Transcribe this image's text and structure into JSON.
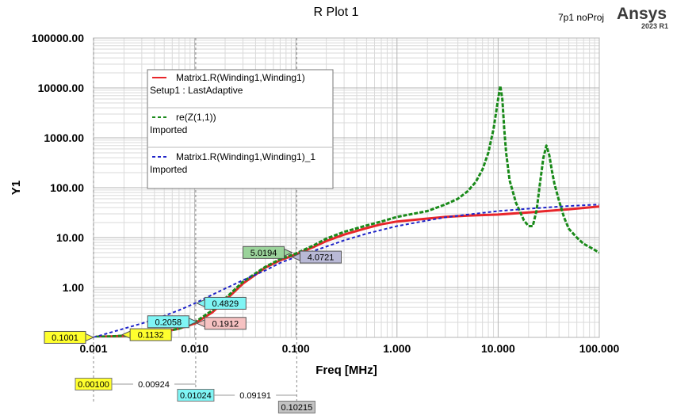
{
  "header": {
    "title": "R Plot 1",
    "project": "7p1 noProj",
    "brand": "Ansys",
    "release": "2023 R1"
  },
  "colors": {
    "series_red": "#e8262b",
    "series_green": "#1a8a1a",
    "series_blue": "#1f24c8",
    "marker_green_bg": "#9bd39b",
    "marker_cyan_bg": "#7ff5f5",
    "marker_pink_bg": "#f6c2c2",
    "marker_gray_bg": "#b9b9d6",
    "marker_yellow_bg": "#ffff2e",
    "marker_slate_bg": "#c2c2c2"
  },
  "chart_data": {
    "type": "line",
    "title": "R Plot 1",
    "xlabel": "Freq [MHz]",
    "ylabel": "Y1",
    "xscale": "log",
    "yscale": "log",
    "xlim": [
      0.001,
      100
    ],
    "ylim": [
      0.1,
      100000
    ],
    "grid": true,
    "x_ticks": [
      "0.001",
      "0.010",
      "0.100",
      "1.000",
      "10.000",
      "100.000"
    ],
    "y_ticks": [
      "100000.00",
      "10000.00",
      "1000.00",
      "100.00",
      "10.00",
      "1.00"
    ],
    "legend_position": "top-left",
    "series": [
      {
        "name": "Matrix1.R(Winding1,Winding1)",
        "source": "Setup1 : LastAdaptive",
        "color_key": "series_red",
        "style": "solid",
        "x": [
          0.00105,
          0.0015,
          0.002,
          0.003,
          0.005,
          0.007,
          0.01,
          0.015,
          0.02,
          0.03,
          0.05,
          0.07,
          0.1,
          0.15,
          0.2,
          0.3,
          0.5,
          0.7,
          1,
          2,
          3,
          5,
          10,
          20,
          50,
          100
        ],
        "y": [
          0.103,
          0.105,
          0.107,
          0.115,
          0.13,
          0.15,
          0.19,
          0.32,
          0.55,
          1.2,
          2.5,
          3.5,
          4.6,
          6.5,
          8.5,
          11.5,
          15.5,
          18.5,
          21,
          24,
          26,
          27.5,
          29,
          32,
          37,
          42
        ]
      },
      {
        "name": "re(Z(1,1))",
        "source": "Imported",
        "color_key": "series_green",
        "style": "dashed",
        "x": [
          0.00105,
          0.0015,
          0.002,
          0.003,
          0.005,
          0.007,
          0.01,
          0.015,
          0.02,
          0.03,
          0.05,
          0.07,
          0.1,
          0.15,
          0.2,
          0.3,
          0.5,
          0.7,
          1,
          2,
          3,
          4,
          5,
          6,
          7,
          8,
          9,
          10,
          10.5,
          11,
          11.5,
          12,
          13,
          15,
          18,
          20,
          22,
          24,
          26,
          28,
          30,
          32,
          34,
          36,
          40,
          45,
          50,
          60,
          70,
          80,
          100
        ],
        "y": [
          0.103,
          0.105,
          0.108,
          0.116,
          0.13,
          0.15,
          0.2,
          0.35,
          0.6,
          1.3,
          2.6,
          3.7,
          4.8,
          7,
          9.5,
          13,
          17.5,
          21,
          26,
          34,
          46,
          60,
          85,
          130,
          230,
          500,
          1500,
          6000,
          11000,
          6000,
          1500,
          500,
          140,
          50,
          22,
          17,
          17,
          35,
          130,
          400,
          700,
          450,
          220,
          120,
          55,
          25,
          15,
          10,
          7.5,
          6.5,
          5
        ]
      },
      {
        "name": "Matrix1.R(Winding1,Winding1)_1",
        "source": "Imported",
        "color_key": "series_blue",
        "style": "dashed",
        "x": [
          0.001,
          0.002,
          0.003,
          0.005,
          0.007,
          0.01,
          0.015,
          0.02,
          0.03,
          0.05,
          0.07,
          0.1,
          0.2,
          0.3,
          0.5,
          1,
          2,
          3,
          5,
          10,
          20,
          50,
          100
        ],
        "y": [
          0.1,
          0.15,
          0.19,
          0.27,
          0.35,
          0.48,
          0.72,
          0.95,
          1.4,
          2.2,
          3.1,
          4.1,
          6.6,
          8.8,
          12,
          17,
          22,
          25.5,
          29,
          34,
          38,
          43,
          46
        ]
      }
    ],
    "markers": [
      {
        "label": "0.1001",
        "bg_key": "marker_yellow_bg",
        "x": 0.001,
        "y": 0.1001,
        "side": "left"
      },
      {
        "label": "0.1132",
        "bg_key": "marker_yellow_bg",
        "x": 0.00192,
        "y": 0.1132,
        "side": "right"
      },
      {
        "label": "0.2058",
        "bg_key": "marker_cyan_bg",
        "x": 0.0105,
        "y": 0.2058,
        "side": "left"
      },
      {
        "label": "0.1912",
        "bg_key": "marker_pink_bg",
        "x": 0.0105,
        "y": 0.1912,
        "side": "right"
      },
      {
        "label": "0.4829",
        "bg_key": "marker_cyan_bg",
        "x": 0.0105,
        "y": 0.4829,
        "side": "right"
      },
      {
        "label": "5.0194",
        "bg_key": "marker_green_bg",
        "x": 0.0919,
        "y": 5.0194,
        "side": "left"
      },
      {
        "label": "4.0721",
        "bg_key": "marker_gray_bg",
        "x": 0.0919,
        "y": 4.0721,
        "side": "right"
      }
    ],
    "x_markers": [
      {
        "label": "0.00100",
        "delta": "0.00924",
        "bg_key": "marker_yellow_bg",
        "x": 0.001
      },
      {
        "label": "0.01024",
        "delta": "0.09191",
        "bg_key": "marker_cyan_bg",
        "x": 0.01024
      },
      {
        "label": "0.10215",
        "delta": "",
        "bg_key": "marker_slate_bg",
        "x": 0.10215
      }
    ]
  }
}
